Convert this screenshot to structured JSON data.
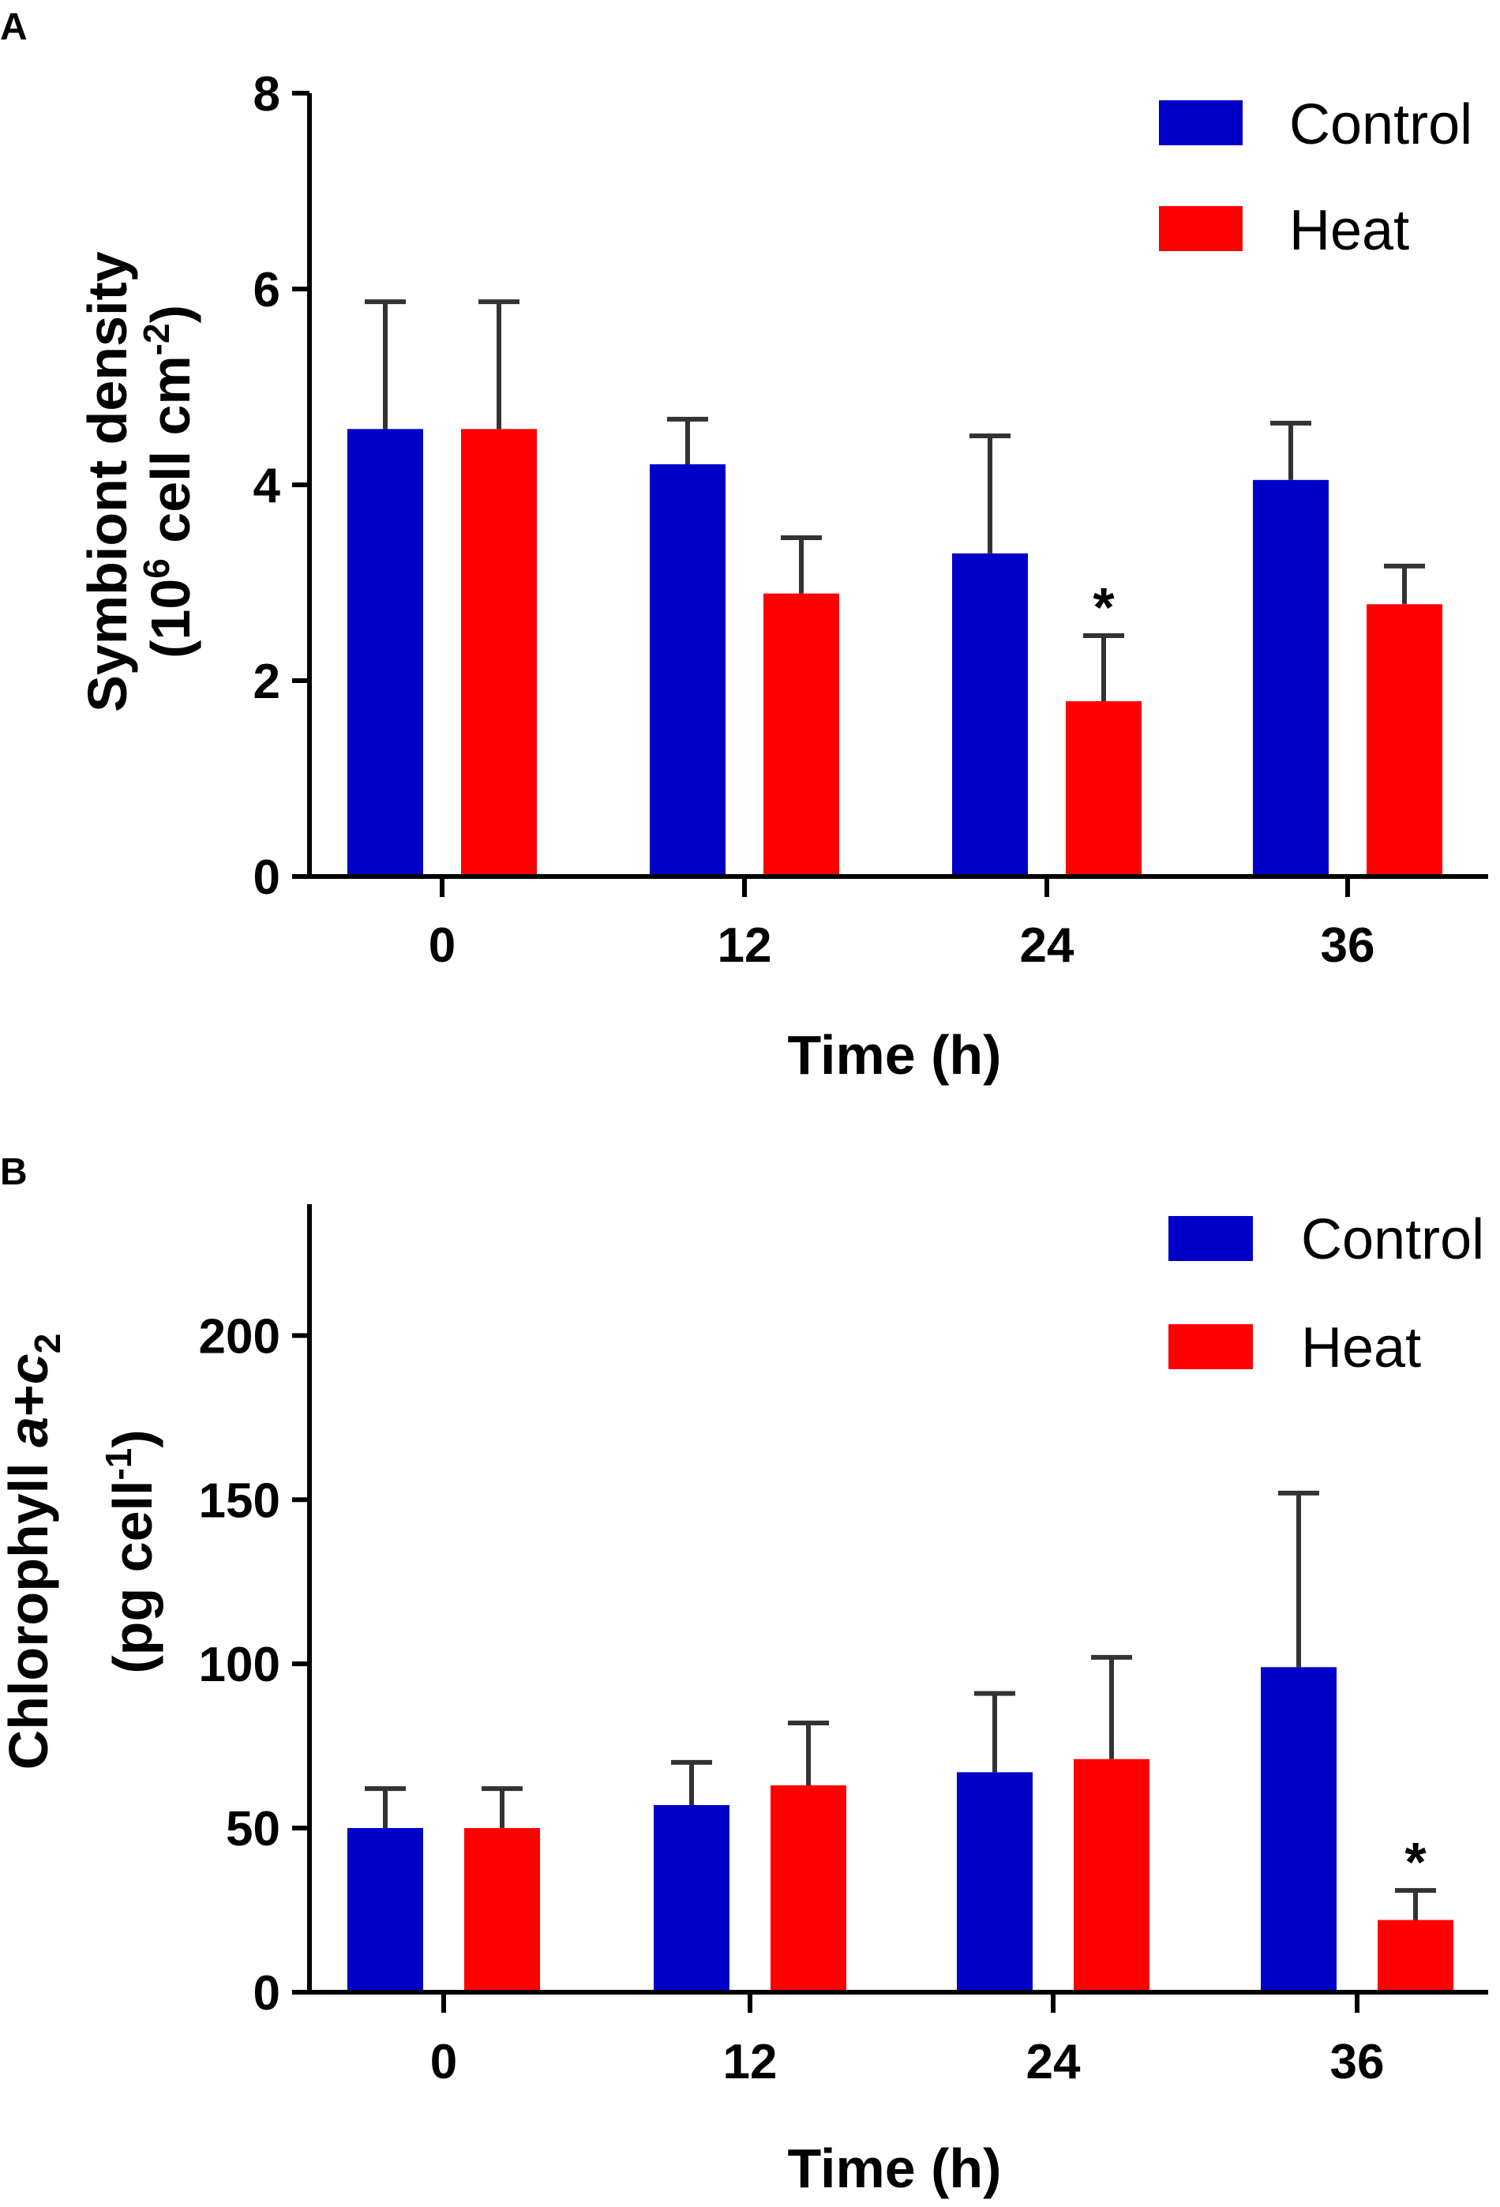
{
  "chart_data": [
    {
      "panel": "A",
      "type": "bar",
      "categories": [
        "0",
        "12",
        "24",
        "36"
      ],
      "series": [
        {
          "name": "Control",
          "color": "#0000c8",
          "values": [
            4.57,
            4.21,
            3.3,
            4.05
          ],
          "errors": [
            1.3,
            0.46,
            1.2,
            0.58
          ]
        },
        {
          "name": "Heat",
          "color": "#ff0000",
          "values": [
            4.57,
            2.89,
            1.79,
            2.78
          ],
          "errors": [
            1.3,
            0.57,
            0.67,
            0.39
          ]
        }
      ],
      "significance": [
        {
          "category": "24",
          "series": "Heat",
          "mark": "*"
        }
      ],
      "xlabel": "Time (h)",
      "ylabel_line1": "Symbiont density",
      "ylabel_line2": {
        "prefix": "(10",
        "sup1": "6",
        "middle": " cell cm",
        "sup2": "-2",
        "suffix": ")"
      },
      "ylim": [
        0,
        8
      ],
      "yticks": [
        "0",
        "2",
        "4",
        "6",
        "8"
      ],
      "legend_position": "top-right"
    },
    {
      "panel": "B",
      "type": "bar",
      "categories": [
        "0",
        "12",
        "24",
        "36"
      ],
      "series": [
        {
          "name": "Control",
          "color": "#0000c8",
          "values": [
            50,
            57,
            67,
            99
          ],
          "errors": [
            12,
            13,
            24,
            53
          ]
        },
        {
          "name": "Heat",
          "color": "#ff0000",
          "values": [
            50,
            63,
            71,
            22
          ],
          "errors": [
            12,
            19,
            31,
            9
          ]
        }
      ],
      "significance": [
        {
          "category": "36",
          "series": "Heat",
          "mark": "*"
        }
      ],
      "xlabel": "Time (h)",
      "ylabel_line1": {
        "prefix": "Chlorophyll ",
        "a": "a",
        "plus": "+",
        "c": "c",
        "sub": "2"
      },
      "ylabel_line2": {
        "prefix": "(pg cell",
        "sup": "-1",
        "suffix": ")"
      },
      "ylim": [
        0,
        240
      ],
      "yticks": [
        "0",
        "50",
        "100",
        "150",
        "200"
      ],
      "legend_position": "top-right"
    }
  ]
}
